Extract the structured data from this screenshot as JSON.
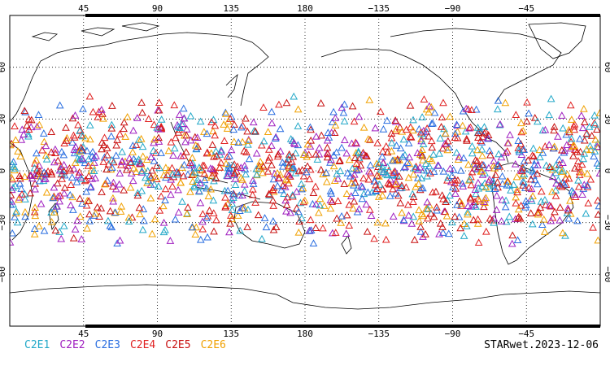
{
  "chart_data": {
    "type": "scatter",
    "projection": "equirectangular",
    "map_center_longitude": 180,
    "x_range": [
      0,
      360
    ],
    "y_range": [
      -90,
      90
    ],
    "grid": "dotted",
    "marker": "open-triangle",
    "lon_ticks": [
      {
        "value": 45,
        "label": "45"
      },
      {
        "value": 90,
        "label": "90"
      },
      {
        "value": 135,
        "label": "135"
      },
      {
        "value": 180,
        "label": "180"
      },
      {
        "value": 225,
        "label": "−135"
      },
      {
        "value": 270,
        "label": "−90"
      },
      {
        "value": 315,
        "label": "−45"
      }
    ],
    "lat_ticks": [
      {
        "value": 60,
        "label": "60"
      },
      {
        "value": 30,
        "label": "30"
      },
      {
        "value": 0,
        "label": "0"
      },
      {
        "value": -30,
        "label": "−30"
      },
      {
        "value": -60,
        "label": "−60"
      }
    ],
    "series": [
      {
        "name": "C2E1",
        "color": "#22a8c8",
        "lat_range": [
          -45,
          45
        ],
        "count": 240
      },
      {
        "name": "C2E2",
        "color": "#a020c0",
        "lat_range": [
          -45,
          45
        ],
        "count": 240
      },
      {
        "name": "C2E3",
        "color": "#2a6ee0",
        "lat_range": [
          -45,
          45
        ],
        "count": 240
      },
      {
        "name": "C2E4",
        "color": "#e02020",
        "lat_range": [
          -45,
          45
        ],
        "count": 240
      },
      {
        "name": "C2E5",
        "color": "#c81010",
        "lat_range": [
          -45,
          45
        ],
        "count": 240
      },
      {
        "name": "C2E6",
        "color": "#f0a000",
        "lat_range": [
          -45,
          45
        ],
        "count": 240
      }
    ]
  },
  "footer": {
    "label": "STARwet.2023-12-06"
  }
}
